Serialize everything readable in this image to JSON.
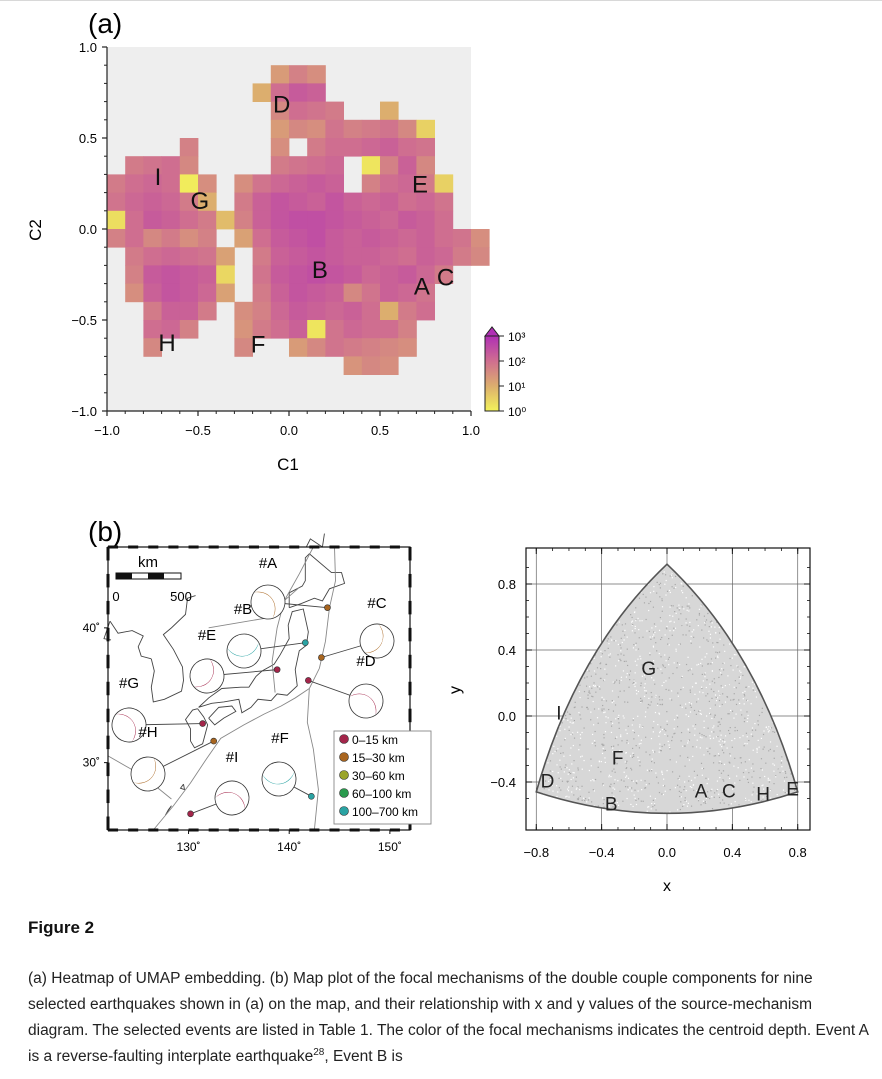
{
  "panel_a_label": "(a)",
  "panel_b_label": "(b)",
  "figure_title": "Figure 2",
  "caption": {
    "part1": "(a) Heatmap of UMAP embedding. (b) Map plot of the focal mechanisms of the double couple components for nine selected earthquakes shown in (a) on the map, and their relationship with x and y values of the source-mechanism diagram. The selected events are listed in Table 1. The color of the focal mechanisms indicates the centroid depth. Event A is a reverse-faulting interplate earthquake",
    "ref": "28",
    "part2": ", Event B is"
  },
  "chart_data": [
    {
      "type": "heatmap",
      "xlabel": "C1",
      "ylabel": "C2",
      "xlim": [
        -1.0,
        1.0
      ],
      "ylim": [
        -1.0,
        1.0
      ],
      "xticks": [
        "−1.0",
        "−0.5",
        "0.0",
        "0.5",
        "1.0"
      ],
      "yticks": [
        "−1.0",
        "−0.5",
        "0.0",
        "0.5",
        "1.0"
      ],
      "background": "#eeeeee",
      "cell_size": 0.1,
      "colorbar": {
        "scale": "log",
        "ticks": [
          "10⁰",
          "10¹",
          "10²",
          "10³"
        ],
        "colors": [
          "#f3f35a",
          "#dcae6e",
          "#cf6e90",
          "#b02fb5"
        ]
      },
      "cells_note": "cells listed as [C1 bin start, C2 bin start, log10(count)]",
      "cells": [
        [
          -0.6,
          0.4,
          1.7
        ],
        [
          -0.9,
          0.3,
          1.8
        ],
        [
          -0.8,
          0.3,
          1.9
        ],
        [
          -0.7,
          0.3,
          2.0
        ],
        [
          -0.6,
          0.3,
          1.6
        ],
        [
          -1.0,
          0.2,
          1.8
        ],
        [
          -0.9,
          0.2,
          2.0
        ],
        [
          -0.8,
          0.2,
          2.1
        ],
        [
          -0.7,
          0.2,
          2.0
        ],
        [
          -0.6,
          0.2,
          0.1
        ],
        [
          -0.5,
          0.2,
          1.5
        ],
        [
          -1.0,
          0.1,
          1.9
        ],
        [
          -0.9,
          0.1,
          2.1
        ],
        [
          -0.8,
          0.1,
          2.2
        ],
        [
          -0.7,
          0.1,
          2.1
        ],
        [
          -0.6,
          0.1,
          1.8
        ],
        [
          -0.5,
          0.1,
          1.0
        ],
        [
          -1.0,
          0.0,
          0.3
        ],
        [
          -0.9,
          0.0,
          2.0
        ],
        [
          -0.8,
          0.0,
          2.3
        ],
        [
          -0.7,
          0.0,
          2.2
        ],
        [
          -0.6,
          0.0,
          2.0
        ],
        [
          -0.5,
          0.0,
          1.8
        ],
        [
          -0.4,
          0.0,
          0.8
        ],
        [
          -0.3,
          0.0,
          1.0
        ],
        [
          -1.0,
          -0.1,
          1.7
        ],
        [
          -0.9,
          -0.1,
          2.0
        ],
        [
          -0.8,
          -0.1,
          1.6
        ],
        [
          -0.7,
          -0.1,
          1.8
        ],
        [
          -0.6,
          -0.1,
          1.5
        ],
        [
          -0.5,
          -0.1,
          1.7
        ],
        [
          -0.9,
          -0.2,
          1.8
        ],
        [
          -0.8,
          -0.2,
          2.0
        ],
        [
          -0.7,
          -0.2,
          2.1
        ],
        [
          -0.6,
          -0.2,
          2.0
        ],
        [
          -0.5,
          -0.2,
          1.9
        ],
        [
          -0.4,
          -0.2,
          1.2
        ],
        [
          -0.9,
          -0.3,
          1.7
        ],
        [
          -0.8,
          -0.3,
          2.3
        ],
        [
          -0.7,
          -0.3,
          2.4
        ],
        [
          -0.6,
          -0.3,
          2.3
        ],
        [
          -0.5,
          -0.3,
          2.2
        ],
        [
          -0.4,
          -0.3,
          0.4
        ],
        [
          -0.9,
          -0.4,
          1.5
        ],
        [
          -0.8,
          -0.4,
          2.2
        ],
        [
          -0.7,
          -0.4,
          2.4
        ],
        [
          -0.6,
          -0.4,
          2.3
        ],
        [
          -0.5,
          -0.4,
          2.1
        ],
        [
          -0.4,
          -0.4,
          1.2
        ],
        [
          -0.8,
          -0.5,
          1.8
        ],
        [
          -0.7,
          -0.5,
          2.2
        ],
        [
          -0.6,
          -0.5,
          2.2
        ],
        [
          -0.5,
          -0.5,
          1.8
        ],
        [
          -0.8,
          -0.6,
          2.0
        ],
        [
          -0.7,
          -0.6,
          2.1
        ],
        [
          -0.6,
          -0.6,
          1.7
        ],
        [
          -0.8,
          -0.7,
          1.6
        ],
        [
          -0.1,
          0.8,
          1.3
        ],
        [
          0.0,
          0.8,
          1.7
        ],
        [
          0.1,
          0.8,
          1.5
        ],
        [
          -0.2,
          0.7,
          1.0
        ],
        [
          -0.1,
          0.7,
          2.0
        ],
        [
          0.0,
          0.7,
          2.3
        ],
        [
          0.1,
          0.7,
          2.2
        ],
        [
          -0.1,
          0.6,
          1.6
        ],
        [
          0.0,
          0.6,
          2.0
        ],
        [
          0.1,
          0.6,
          1.9
        ],
        [
          0.2,
          0.6,
          1.8
        ],
        [
          0.5,
          0.6,
          1.0
        ],
        [
          -0.1,
          0.5,
          1.3
        ],
        [
          0.0,
          0.5,
          1.6
        ],
        [
          0.1,
          0.5,
          1.5
        ],
        [
          0.2,
          0.5,
          1.9
        ],
        [
          0.3,
          0.5,
          1.7
        ],
        [
          0.4,
          0.5,
          1.8
        ],
        [
          0.5,
          0.5,
          1.9
        ],
        [
          0.6,
          0.5,
          1.6
        ],
        [
          0.7,
          0.5,
          0.5
        ],
        [
          -0.1,
          0.4,
          1.5
        ],
        [
          0.1,
          0.4,
          1.8
        ],
        [
          0.2,
          0.4,
          2.0
        ],
        [
          0.3,
          0.4,
          2.0
        ],
        [
          0.4,
          0.4,
          2.1
        ],
        [
          0.5,
          0.4,
          2.2
        ],
        [
          0.6,
          0.4,
          2.0
        ],
        [
          0.7,
          0.4,
          1.9
        ],
        [
          -0.1,
          0.3,
          1.8
        ],
        [
          0.0,
          0.3,
          1.9
        ],
        [
          0.1,
          0.3,
          2.0
        ],
        [
          0.2,
          0.3,
          2.1
        ],
        [
          0.4,
          0.3,
          0.2
        ],
        [
          0.5,
          0.3,
          1.7
        ],
        [
          0.6,
          0.3,
          2.2
        ],
        [
          0.7,
          0.3,
          1.6
        ],
        [
          -0.3,
          0.2,
          1.5
        ],
        [
          -0.2,
          0.2,
          1.9
        ],
        [
          -0.1,
          0.2,
          2.1
        ],
        [
          0.0,
          0.2,
          2.2
        ],
        [
          0.1,
          0.2,
          2.3
        ],
        [
          0.2,
          0.2,
          2.2
        ],
        [
          0.4,
          0.2,
          1.7
        ],
        [
          0.5,
          0.2,
          2.0
        ],
        [
          0.6,
          0.2,
          2.1
        ],
        [
          0.7,
          0.2,
          1.8
        ],
        [
          0.8,
          0.2,
          0.5
        ],
        [
          -0.3,
          0.1,
          1.8
        ],
        [
          -0.2,
          0.1,
          2.2
        ],
        [
          -0.1,
          0.1,
          2.4
        ],
        [
          0.0,
          0.1,
          2.3
        ],
        [
          0.1,
          0.1,
          2.2
        ],
        [
          0.2,
          0.1,
          2.4
        ],
        [
          0.3,
          0.1,
          2.2
        ],
        [
          0.4,
          0.1,
          2.1
        ],
        [
          0.5,
          0.1,
          2.2
        ],
        [
          0.6,
          0.1,
          2.0
        ],
        [
          0.7,
          0.1,
          2.1
        ],
        [
          0.8,
          0.1,
          1.9
        ],
        [
          -0.3,
          0.0,
          1.7
        ],
        [
          -0.2,
          0.0,
          2.2
        ],
        [
          -0.1,
          0.0,
          2.4
        ],
        [
          0.0,
          0.0,
          2.5
        ],
        [
          0.1,
          0.0,
          2.5
        ],
        [
          0.2,
          0.0,
          2.4
        ],
        [
          0.3,
          0.0,
          2.3
        ],
        [
          0.4,
          0.0,
          2.2
        ],
        [
          0.5,
          0.0,
          2.1
        ],
        [
          0.6,
          0.0,
          2.3
        ],
        [
          0.7,
          0.0,
          2.2
        ],
        [
          0.8,
          0.0,
          2.0
        ],
        [
          -0.3,
          -0.1,
          1.2
        ],
        [
          -0.2,
          -0.1,
          2.0
        ],
        [
          -0.1,
          -0.1,
          2.3
        ],
        [
          0.0,
          -0.1,
          2.4
        ],
        [
          0.1,
          -0.1,
          2.5
        ],
        [
          0.2,
          -0.1,
          2.3
        ],
        [
          0.3,
          -0.1,
          2.2
        ],
        [
          0.4,
          -0.1,
          2.3
        ],
        [
          0.5,
          -0.1,
          2.2
        ],
        [
          0.6,
          -0.1,
          2.1
        ],
        [
          0.7,
          -0.1,
          2.2
        ],
        [
          0.8,
          -0.1,
          2.0
        ],
        [
          0.9,
          -0.1,
          1.9
        ],
        [
          1.0,
          -0.1,
          1.5
        ],
        [
          -0.2,
          -0.2,
          1.8
        ],
        [
          -0.1,
          -0.2,
          2.2
        ],
        [
          0.0,
          -0.2,
          2.3
        ],
        [
          0.1,
          -0.2,
          2.4
        ],
        [
          0.2,
          -0.2,
          2.3
        ],
        [
          0.3,
          -0.2,
          2.2
        ],
        [
          0.4,
          -0.2,
          2.2
        ],
        [
          0.5,
          -0.2,
          2.1
        ],
        [
          0.6,
          -0.2,
          2.0
        ],
        [
          0.7,
          -0.2,
          2.2
        ],
        [
          0.8,
          -0.2,
          2.1
        ],
        [
          0.9,
          -0.2,
          1.8
        ],
        [
          1.0,
          -0.2,
          1.6
        ],
        [
          -0.2,
          -0.3,
          1.9
        ],
        [
          -0.1,
          -0.3,
          2.3
        ],
        [
          0.0,
          -0.3,
          2.4
        ],
        [
          0.1,
          -0.3,
          2.5
        ],
        [
          0.2,
          -0.3,
          2.4
        ],
        [
          0.3,
          -0.3,
          2.3
        ],
        [
          0.4,
          -0.3,
          2.1
        ],
        [
          0.5,
          -0.3,
          2.2
        ],
        [
          0.6,
          -0.3,
          2.3
        ],
        [
          0.7,
          -0.3,
          2.1
        ],
        [
          0.8,
          -0.3,
          1.8
        ],
        [
          -0.2,
          -0.4,
          1.8
        ],
        [
          -0.1,
          -0.4,
          2.2
        ],
        [
          0.0,
          -0.4,
          2.4
        ],
        [
          0.1,
          -0.4,
          2.3
        ],
        [
          0.2,
          -0.4,
          2.2
        ],
        [
          0.3,
          -0.4,
          1.6
        ],
        [
          0.4,
          -0.4,
          1.9
        ],
        [
          0.5,
          -0.4,
          2.2
        ],
        [
          0.6,
          -0.4,
          2.1
        ],
        [
          0.7,
          -0.4,
          1.9
        ],
        [
          -0.3,
          -0.5,
          1.5
        ],
        [
          -0.2,
          -0.5,
          1.7
        ],
        [
          -0.1,
          -0.5,
          2.1
        ],
        [
          0.0,
          -0.5,
          2.3
        ],
        [
          0.1,
          -0.5,
          2.2
        ],
        [
          0.2,
          -0.5,
          2.1
        ],
        [
          0.3,
          -0.5,
          2.2
        ],
        [
          0.4,
          -0.5,
          2.0
        ],
        [
          0.5,
          -0.5,
          1.0
        ],
        [
          0.6,
          -0.5,
          1.8
        ],
        [
          0.7,
          -0.5,
          2.0
        ],
        [
          -0.3,
          -0.6,
          1.4
        ],
        [
          -0.2,
          -0.6,
          1.8
        ],
        [
          -0.1,
          -0.6,
          2.0
        ],
        [
          0.0,
          -0.6,
          2.2
        ],
        [
          0.1,
          -0.6,
          0.2
        ],
        [
          0.2,
          -0.6,
          1.9
        ],
        [
          0.3,
          -0.6,
          2.1
        ],
        [
          0.4,
          -0.6,
          2.0
        ],
        [
          0.5,
          -0.6,
          2.0
        ],
        [
          0.6,
          -0.6,
          1.7
        ],
        [
          -0.3,
          -0.7,
          1.6
        ],
        [
          0.0,
          -0.7,
          1.3
        ],
        [
          0.1,
          -0.7,
          1.6
        ],
        [
          0.2,
          -0.7,
          1.9
        ],
        [
          0.3,
          -0.7,
          1.8
        ],
        [
          0.4,
          -0.7,
          1.7
        ],
        [
          0.5,
          -0.7,
          1.6
        ],
        [
          0.6,
          -0.7,
          1.5
        ],
        [
          0.3,
          -0.8,
          1.4
        ],
        [
          0.4,
          -0.8,
          1.6
        ],
        [
          0.5,
          -0.8,
          1.5
        ]
      ],
      "annotations": [
        {
          "text": "A",
          "x": 0.73,
          "y": -0.31
        },
        {
          "text": "B",
          "x": 0.17,
          "y": -0.22
        },
        {
          "text": "C",
          "x": 0.86,
          "y": -0.26
        },
        {
          "text": "D",
          "x": -0.04,
          "y": 0.69
        },
        {
          "text": "E",
          "x": 0.72,
          "y": 0.25
        },
        {
          "text": "F",
          "x": -0.17,
          "y": -0.63
        },
        {
          "text": "G",
          "x": -0.49,
          "y": 0.16
        },
        {
          "text": "H",
          "x": -0.67,
          "y": -0.62
        },
        {
          "text": "I",
          "x": -0.72,
          "y": 0.29
        }
      ]
    },
    {
      "type": "map",
      "lon_range": [
        122,
        152
      ],
      "lat_range": [
        25,
        46
      ],
      "xticks": [
        "130˚",
        "140˚",
        "150˚"
      ],
      "yticks": [
        "30˚",
        "40˚"
      ],
      "scale_bar": {
        "label": "km",
        "ticks": [
          "0",
          "500"
        ]
      },
      "legend": {
        "placement": "bottom-right",
        "entries": [
          {
            "label": "0–15 km",
            "color": "#a3254a"
          },
          {
            "label": "15–30 km",
            "color": "#a8651f"
          },
          {
            "label": "30–60 km",
            "color": "#9aa42c"
          },
          {
            "label": "60–100 km",
            "color": "#2a9a4e"
          },
          {
            "label": "100–700 km",
            "color": "#2aa3a3"
          }
        ]
      },
      "events": [
        {
          "label": "#A",
          "lon": 143.8,
          "lat": 41.5,
          "depth_class": 1
        },
        {
          "label": "#B",
          "lon": 141.6,
          "lat": 38.9,
          "depth_class": 4
        },
        {
          "label": "#C",
          "lon": 143.2,
          "lat": 37.8,
          "depth_class": 1
        },
        {
          "label": "#D",
          "lon": 141.9,
          "lat": 36.1,
          "depth_class": 0
        },
        {
          "label": "#E",
          "lon": 138.8,
          "lat": 36.9,
          "depth_class": 0
        },
        {
          "label": "#F",
          "lon": 142.2,
          "lat": 27.5,
          "depth_class": 4
        },
        {
          "label": "#G",
          "lon": 131.4,
          "lat": 32.9,
          "depth_class": 0
        },
        {
          "label": "#H",
          "lon": 132.5,
          "lat": 31.6,
          "depth_class": 1
        },
        {
          "label": "#I",
          "lon": 130.2,
          "lat": 26.2,
          "depth_class": 0
        }
      ]
    },
    {
      "type": "scatter",
      "xlabel": "x",
      "ylabel": "y",
      "xlim": [
        -0.8,
        0.8
      ],
      "ylim": [
        -0.6,
        0.92
      ],
      "xticks": [
        "−0.8",
        "−0.4",
        "0.0",
        "0.4",
        "0.8"
      ],
      "yticks": [
        "−0.4",
        "0.0",
        "0.4",
        "0.8"
      ],
      "grid": true,
      "points": [
        {
          "label": "A",
          "x": 0.21,
          "y": -0.45
        },
        {
          "label": "B",
          "x": -0.34,
          "y": -0.53
        },
        {
          "label": "C",
          "x": 0.38,
          "y": -0.45
        },
        {
          "label": "D",
          "x": -0.73,
          "y": -0.39
        },
        {
          "label": "E",
          "x": 0.77,
          "y": -0.44
        },
        {
          "label": "F",
          "x": -0.3,
          "y": -0.25
        },
        {
          "label": "G",
          "x": -0.11,
          "y": 0.29
        },
        {
          "label": "H",
          "x": 0.59,
          "y": -0.47
        },
        {
          "label": "I",
          "x": -0.66,
          "y": 0.02
        }
      ]
    }
  ]
}
